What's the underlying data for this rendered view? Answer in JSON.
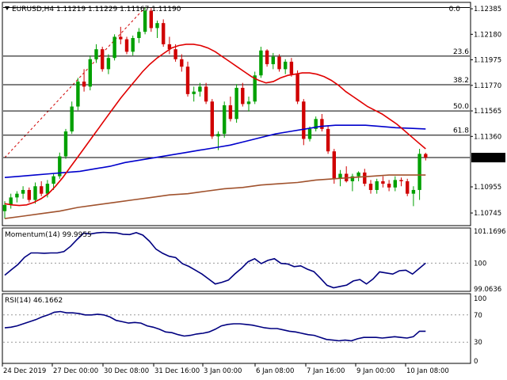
{
  "header": {
    "title": "EURUSD,H4  1.11219 1.11229 1.11167 1.11190",
    "fib_top_label": "0.0"
  },
  "colors": {
    "bull": "#00a000",
    "bear": "#d00000",
    "ma_fast": "#e00000",
    "ma_mid": "#0000cc",
    "ma_slow": "#a0522d",
    "indicator": "#000080",
    "price_tag_bg": "#000000"
  },
  "chart_data": [
    {
      "type": "candlestick",
      "title": "EURUSD,H4",
      "ohlc_last": {
        "open": 1.11219,
        "high": 1.11229,
        "low": 1.11167,
        "close": 1.1119
      },
      "ylim": [
        1.1065,
        1.1243
      ],
      "y_ticks": [
        "1.12385",
        "1.12180",
        "1.11975",
        "1.11770",
        "1.11565",
        "1.11360",
        "1.11190",
        "1.10955",
        "1.10745"
      ],
      "current_price": "1.11190",
      "fib_levels": [
        {
          "label": "0.0",
          "price": 1.12395
        },
        {
          "label": "23.6",
          "price": 1.12005
        },
        {
          "label": "38.2",
          "price": 1.11775
        },
        {
          "label": "50.0",
          "price": 1.11565
        },
        {
          "label": "61.8",
          "price": 1.1137
        },
        {
          "label": "",
          "price": 1.1119
        }
      ],
      "candles": [
        [
          1.1076,
          1.1084,
          1.107,
          1.1081
        ],
        [
          1.1081,
          1.109,
          1.1078,
          1.1087
        ],
        [
          1.1087,
          1.1092,
          1.1083,
          1.109
        ],
        [
          1.109,
          1.1096,
          1.1086,
          1.1093
        ],
        [
          1.1093,
          1.1095,
          1.1083,
          1.1085
        ],
        [
          1.1085,
          1.1099,
          1.1082,
          1.1096
        ],
        [
          1.1096,
          1.11,
          1.1088,
          1.109
        ],
        [
          1.109,
          1.1101,
          1.1087,
          1.1098
        ],
        [
          1.1098,
          1.1106,
          1.1093,
          1.1104
        ],
        [
          1.1104,
          1.1123,
          1.1102,
          1.112
        ],
        [
          1.112,
          1.1142,
          1.1118,
          1.114
        ],
        [
          1.114,
          1.1164,
          1.1138,
          1.116
        ],
        [
          1.116,
          1.1183,
          1.1157,
          1.118
        ],
        [
          1.118,
          1.119,
          1.1172,
          1.1176
        ],
        [
          1.1176,
          1.1201,
          1.1173,
          1.1198
        ],
        [
          1.1198,
          1.121,
          1.1195,
          1.1206
        ],
        [
          1.1206,
          1.1208,
          1.1188,
          1.119
        ],
        [
          1.119,
          1.1202,
          1.1186,
          1.1199
        ],
        [
          1.1199,
          1.1218,
          1.1197,
          1.1216
        ],
        [
          1.1216,
          1.1224,
          1.121,
          1.1214
        ],
        [
          1.1214,
          1.1216,
          1.1202,
          1.1204
        ],
        [
          1.1204,
          1.1217,
          1.1201,
          1.1215
        ],
        [
          1.1215,
          1.1223,
          1.1211,
          1.122
        ],
        [
          1.122,
          1.12395,
          1.1218,
          1.1237
        ],
        [
          1.1237,
          1.1239,
          1.122,
          1.1223
        ],
        [
          1.1223,
          1.1229,
          1.1215,
          1.1227
        ],
        [
          1.1227,
          1.123,
          1.1208,
          1.121
        ],
        [
          1.121,
          1.1216,
          1.1202,
          1.1206
        ],
        [
          1.1206,
          1.121,
          1.1196,
          1.1198
        ],
        [
          1.1198,
          1.1202,
          1.1188,
          1.1192
        ],
        [
          1.1192,
          1.1196,
          1.1168,
          1.117
        ],
        [
          1.117,
          1.1176,
          1.1164,
          1.1172
        ],
        [
          1.1172,
          1.1179,
          1.1168,
          1.1176
        ],
        [
          1.1176,
          1.1179,
          1.1162,
          1.1164
        ],
        [
          1.1164,
          1.1166,
          1.1134,
          1.1136
        ],
        [
          1.1136,
          1.114,
          1.1125,
          1.1138
        ],
        [
          1.1138,
          1.1164,
          1.1135,
          1.1161
        ],
        [
          1.1161,
          1.1168,
          1.1148,
          1.115
        ],
        [
          1.115,
          1.1178,
          1.1147,
          1.1175
        ],
        [
          1.1175,
          1.1179,
          1.116,
          1.1162
        ],
        [
          1.1162,
          1.1168,
          1.1156,
          1.1164
        ],
        [
          1.1164,
          1.1188,
          1.1162,
          1.1185
        ],
        [
          1.1185,
          1.1208,
          1.1183,
          1.1205
        ],
        [
          1.1205,
          1.1206,
          1.1192,
          1.1194
        ],
        [
          1.1194,
          1.1203,
          1.119,
          1.12
        ],
        [
          1.12,
          1.1202,
          1.1188,
          1.119
        ],
        [
          1.119,
          1.1198,
          1.1186,
          1.1196
        ],
        [
          1.1196,
          1.1199,
          1.1184,
          1.1186
        ],
        [
          1.1186,
          1.1189,
          1.1162,
          1.1164
        ],
        [
          1.1164,
          1.1166,
          1.1129,
          1.1134
        ],
        [
          1.1134,
          1.1144,
          1.1132,
          1.1142
        ],
        [
          1.1142,
          1.1152,
          1.114,
          1.115
        ],
        [
          1.115,
          1.1154,
          1.114,
          1.1142
        ],
        [
          1.1142,
          1.1145,
          1.1122,
          1.1124
        ],
        [
          1.1124,
          1.1126,
          1.1098,
          1.1102
        ],
        [
          1.1102,
          1.1109,
          1.1096,
          1.1106
        ],
        [
          1.1106,
          1.1112,
          1.1099,
          1.11
        ],
        [
          1.11,
          1.1106,
          1.1092,
          1.1104
        ],
        [
          1.1104,
          1.1108,
          1.11,
          1.1107
        ],
        [
          1.1107,
          1.111,
          1.1096,
          1.1098
        ],
        [
          1.1098,
          1.1101,
          1.109,
          1.1093
        ],
        [
          1.1093,
          1.1102,
          1.109,
          1.11
        ],
        [
          1.11,
          1.1104,
          1.1095,
          1.1098
        ],
        [
          1.1098,
          1.1101,
          1.1092,
          1.1095
        ],
        [
          1.1095,
          1.1104,
          1.1092,
          1.1101
        ],
        [
          1.1101,
          1.1103,
          1.1096,
          1.11
        ],
        [
          1.11,
          1.1102,
          1.1088,
          1.109
        ],
        [
          1.109,
          1.1096,
          1.108,
          1.1093
        ],
        [
          1.1093,
          1.1126,
          1.1085,
          1.1122
        ],
        [
          1.11219,
          1.11229,
          1.11167,
          1.1119
        ]
      ],
      "ma_fast": [
        1.1082,
        1.1081,
        1.10805,
        1.1081,
        1.1083,
        1.1086,
        1.109,
        1.1096,
        1.1103,
        1.1111,
        1.1119,
        1.1127,
        1.1135,
        1.1143,
        1.1151,
        1.1159,
        1.1167,
        1.1174,
        1.1181,
        1.1188,
        1.1194,
        1.1199,
        1.1203,
        1.1207,
        1.1209,
        1.121,
        1.121,
        1.1209,
        1.1207,
        1.1204,
        1.12,
        1.1196,
        1.1192,
        1.1188,
        1.1184,
        1.1181,
        1.1179,
        1.118,
        1.1183,
        1.1185,
        1.1186,
        1.1187,
        1.1187,
        1.1186,
        1.1184,
        1.1181,
        1.1177,
        1.1172,
        1.1168,
        1.1164,
        1.116,
        1.1157,
        1.1154,
        1.115,
        1.1146,
        1.1141,
        1.1136,
        1.1131,
        1.1126
      ],
      "ma_mid": [
        1.1103,
        1.1104,
        1.1105,
        1.1106,
        1.1107,
        1.1108,
        1.111,
        1.1112,
        1.1115,
        1.1117,
        1.1119,
        1.1121,
        1.1123,
        1.1125,
        1.1127,
        1.1129,
        1.1132,
        1.1135,
        1.1138,
        1.114,
        1.1142,
        1.1144,
        1.1145,
        1.1145,
        1.1145,
        1.1144,
        1.1143,
        1.11425,
        1.1142
      ],
      "ma_slow": [
        1.107,
        1.1072,
        1.1074,
        1.1076,
        1.1079,
        1.1081,
        1.1083,
        1.1085,
        1.1087,
        1.1089,
        1.109,
        1.1092,
        1.1094,
        1.1095,
        1.1097,
        1.1098,
        1.1099,
        1.1101,
        1.1102,
        1.1103,
        1.1104,
        1.1105,
        1.1105,
        1.1105
      ]
    },
    {
      "type": "line",
      "title": "Momentum(14) 99.9955",
      "ylim": [
        99.0,
        101.25
      ],
      "y_ticks": [
        "101.1696",
        "100",
        "99.0636"
      ],
      "reference_levels": [
        100
      ],
      "values": [
        99.56,
        99.76,
        99.95,
        100.21,
        100.37,
        100.37,
        100.36,
        100.37,
        100.37,
        100.42,
        100.61,
        100.86,
        101.09,
        101.06,
        101.1,
        101.12,
        101.11,
        101.1,
        101.05,
        101.04,
        101.11,
        101.02,
        100.8,
        100.51,
        100.36,
        100.25,
        100.2,
        99.98,
        99.88,
        99.74,
        99.6,
        99.42,
        99.24,
        99.3,
        99.38,
        99.61,
        99.81,
        100.05,
        100.16,
        99.98,
        100.1,
        100.16,
        99.99,
        99.97,
        99.87,
        99.9,
        99.78,
        99.69,
        99.45,
        99.19,
        99.1,
        99.15,
        99.2,
        99.35,
        99.4,
        99.24,
        99.42,
        99.68,
        99.64,
        99.6,
        99.72,
        99.74,
        99.6,
        99.8,
        100.0
      ]
    },
    {
      "type": "line",
      "title": "RSI(14) 46.1662",
      "ylim": [
        0,
        100
      ],
      "y_ticks": [
        "100",
        "70",
        "30",
        "0"
      ],
      "reference_levels": [
        70,
        30
      ],
      "values": [
        51,
        52,
        54,
        57,
        60,
        63,
        67,
        70,
        74,
        75,
        73,
        73,
        72,
        70,
        70,
        71,
        70,
        67,
        62,
        60,
        58,
        59,
        58,
        54,
        52,
        49,
        45,
        44,
        41,
        39,
        40,
        42,
        43,
        45,
        49,
        54,
        56,
        57,
        57,
        56,
        55,
        53,
        51,
        50,
        50,
        48,
        46,
        45,
        43,
        41,
        40,
        37,
        34,
        33,
        32,
        33,
        32,
        35,
        37,
        37,
        37,
        36,
        37,
        38,
        37,
        36,
        38,
        46,
        46
      ]
    }
  ],
  "x_axis": {
    "labels": [
      "24 Dec 2019",
      "27 Dec 00:00",
      "30 Dec 08:00",
      "31 Dec 16:00",
      "3 Jan 00:00",
      "6 Jan 08:00",
      "7 Jan 16:00",
      "9 Jan 00:00",
      "10 Jan 08:00"
    ]
  }
}
